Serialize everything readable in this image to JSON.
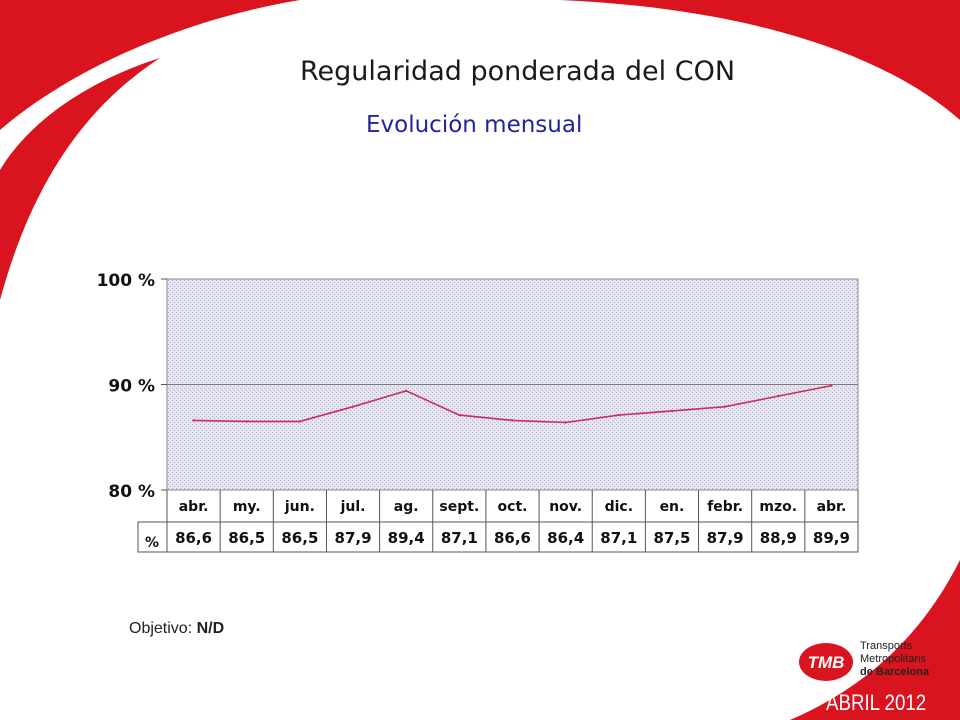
{
  "slide": {
    "title": "Regularidad ponderada del CON",
    "subtitle": "Evolución mensual",
    "objective_label": "Objetivo:",
    "objective_value": "N/D",
    "footer_date": "ABRIL 2012",
    "logo": {
      "mark": "TMB",
      "line1": "Transports",
      "line2": "Metropolitans",
      "line3": "de Barcelona"
    },
    "colors": {
      "accent_red": "#d9141e",
      "title_blue": "#23239b",
      "series_line": "#cc2b5e",
      "plot_fill": "#e6e6f2"
    }
  },
  "chart_data": {
    "type": "line",
    "title": "Regularidad ponderada del CON",
    "subtitle": "Evolución mensual",
    "categories": [
      "abr.",
      "my.",
      "jun.",
      "jul.",
      "ag.",
      "sept.",
      "oct.",
      "nov.",
      "dic.",
      "en.",
      "febr.",
      "mzo.",
      "abr."
    ],
    "series": [
      {
        "name": "%",
        "values": [
          86.6,
          86.5,
          86.5,
          87.9,
          89.4,
          87.1,
          86.6,
          86.4,
          87.1,
          87.5,
          87.9,
          88.9,
          89.9
        ]
      }
    ],
    "value_labels": [
      "86,6",
      "86,5",
      "86,5",
      "87,9",
      "89,4",
      "87,1",
      "86,6",
      "86,4",
      "87,1",
      "87,5",
      "87,9",
      "88,9",
      "89,9"
    ],
    "table_row_label": "%",
    "ylim": [
      80,
      100
    ],
    "yticks": [
      80,
      90,
      100
    ],
    "ytick_labels": [
      "80 %",
      "90 %",
      "100 %"
    ],
    "grid": true,
    "legend": "none"
  }
}
